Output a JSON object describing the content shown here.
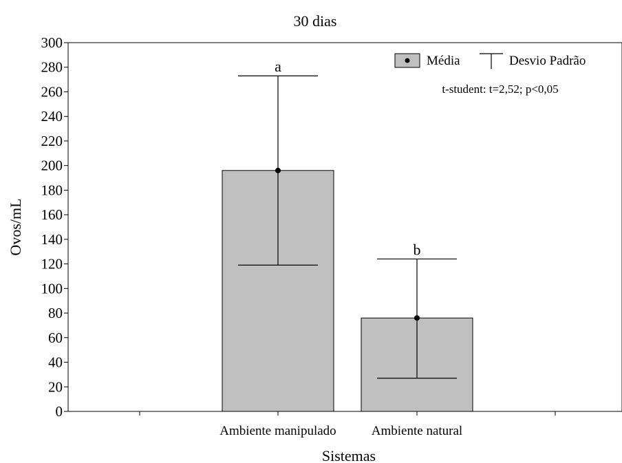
{
  "chart_data": {
    "type": "bar",
    "title": "30 dias",
    "xlabel": "Sistemas",
    "ylabel": "Ovos/mL",
    "ylim": [
      0,
      300
    ],
    "yticks": [
      0,
      20,
      40,
      60,
      80,
      100,
      120,
      140,
      160,
      180,
      200,
      220,
      240,
      260,
      280,
      300
    ],
    "categories": [
      "Ambiente manipulado",
      "Ambiente natural"
    ],
    "values": [
      196,
      76
    ],
    "error_upper": [
      273,
      124
    ],
    "error_lower": [
      119,
      27
    ],
    "significance_letters": [
      "a",
      "b"
    ],
    "bar_color": "#c0c0c0",
    "legend": {
      "position": "top-right",
      "mean_label": "Média",
      "sd_label": "Desvio Padrão"
    },
    "annotation": "t-student: t=2,52; p<0,05",
    "grid": false
  }
}
